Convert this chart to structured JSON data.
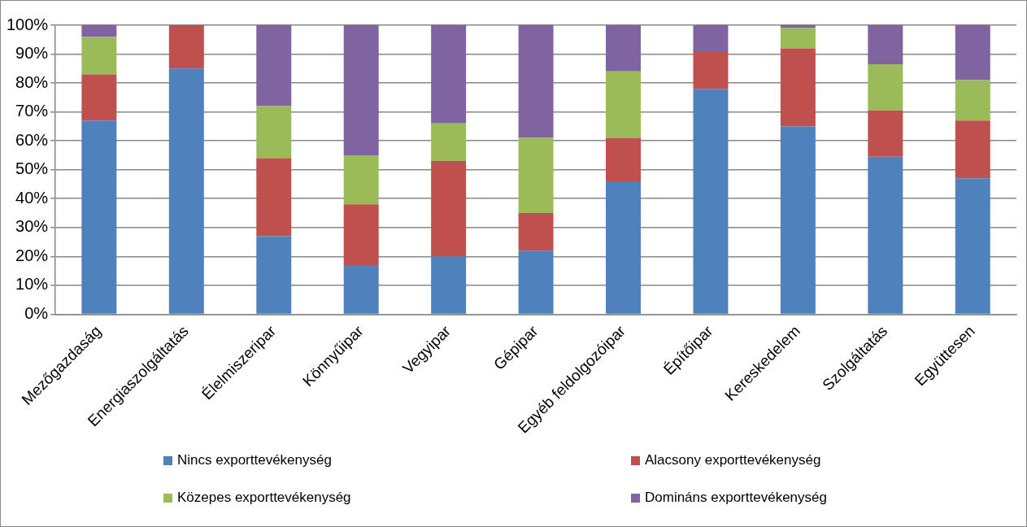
{
  "chart_data": {
    "type": "bar",
    "stacked": true,
    "categories": [
      "Mezőgazdaság",
      "Energiaszolgáltatás",
      "Élelmiszeripar",
      "Könnyűipar",
      "Vegyipar",
      "Gépipar",
      "Egyéb feldolgozóipar",
      "Építőipar",
      "Kereskedelem",
      "Szolgáltatás",
      "Együttesen"
    ],
    "series": [
      {
        "name": "Nincs exporttevékenység",
        "color": "#4f81bd",
        "values": [
          67,
          85,
          27,
          17,
          20,
          22,
          46,
          78,
          65,
          54.5,
          47
        ]
      },
      {
        "name": "Alacsony exporttevékenység",
        "color": "#c0504d",
        "values": [
          16,
          15,
          27,
          21,
          33,
          13,
          15,
          13,
          27,
          16,
          20
        ]
      },
      {
        "name": "Közepes exporttevékenység",
        "color": "#9bbb59",
        "values": [
          13,
          0,
          18,
          17,
          13,
          26,
          23,
          0,
          7,
          16,
          14
        ]
      },
      {
        "name": "Domináns exporttevékenység",
        "color": "#8064a2",
        "values": [
          4,
          0,
          28,
          45,
          34,
          39,
          16,
          9,
          1,
          13.5,
          19
        ]
      }
    ],
    "ylim": [
      0,
      100
    ],
    "yticks": [
      {
        "value": 0,
        "label": "0%"
      },
      {
        "value": 10,
        "label": "10%"
      },
      {
        "value": 20,
        "label": "20%"
      },
      {
        "value": 30,
        "label": "30%"
      },
      {
        "value": 40,
        "label": "40%"
      },
      {
        "value": 50,
        "label": "50%"
      },
      {
        "value": 60,
        "label": "60%"
      },
      {
        "value": 70,
        "label": "70%"
      },
      {
        "value": 80,
        "label": "80%"
      },
      {
        "value": 90,
        "label": "90%"
      },
      {
        "value": 100,
        "label": "100%"
      }
    ],
    "grid": "y",
    "legend": "bottom"
  }
}
